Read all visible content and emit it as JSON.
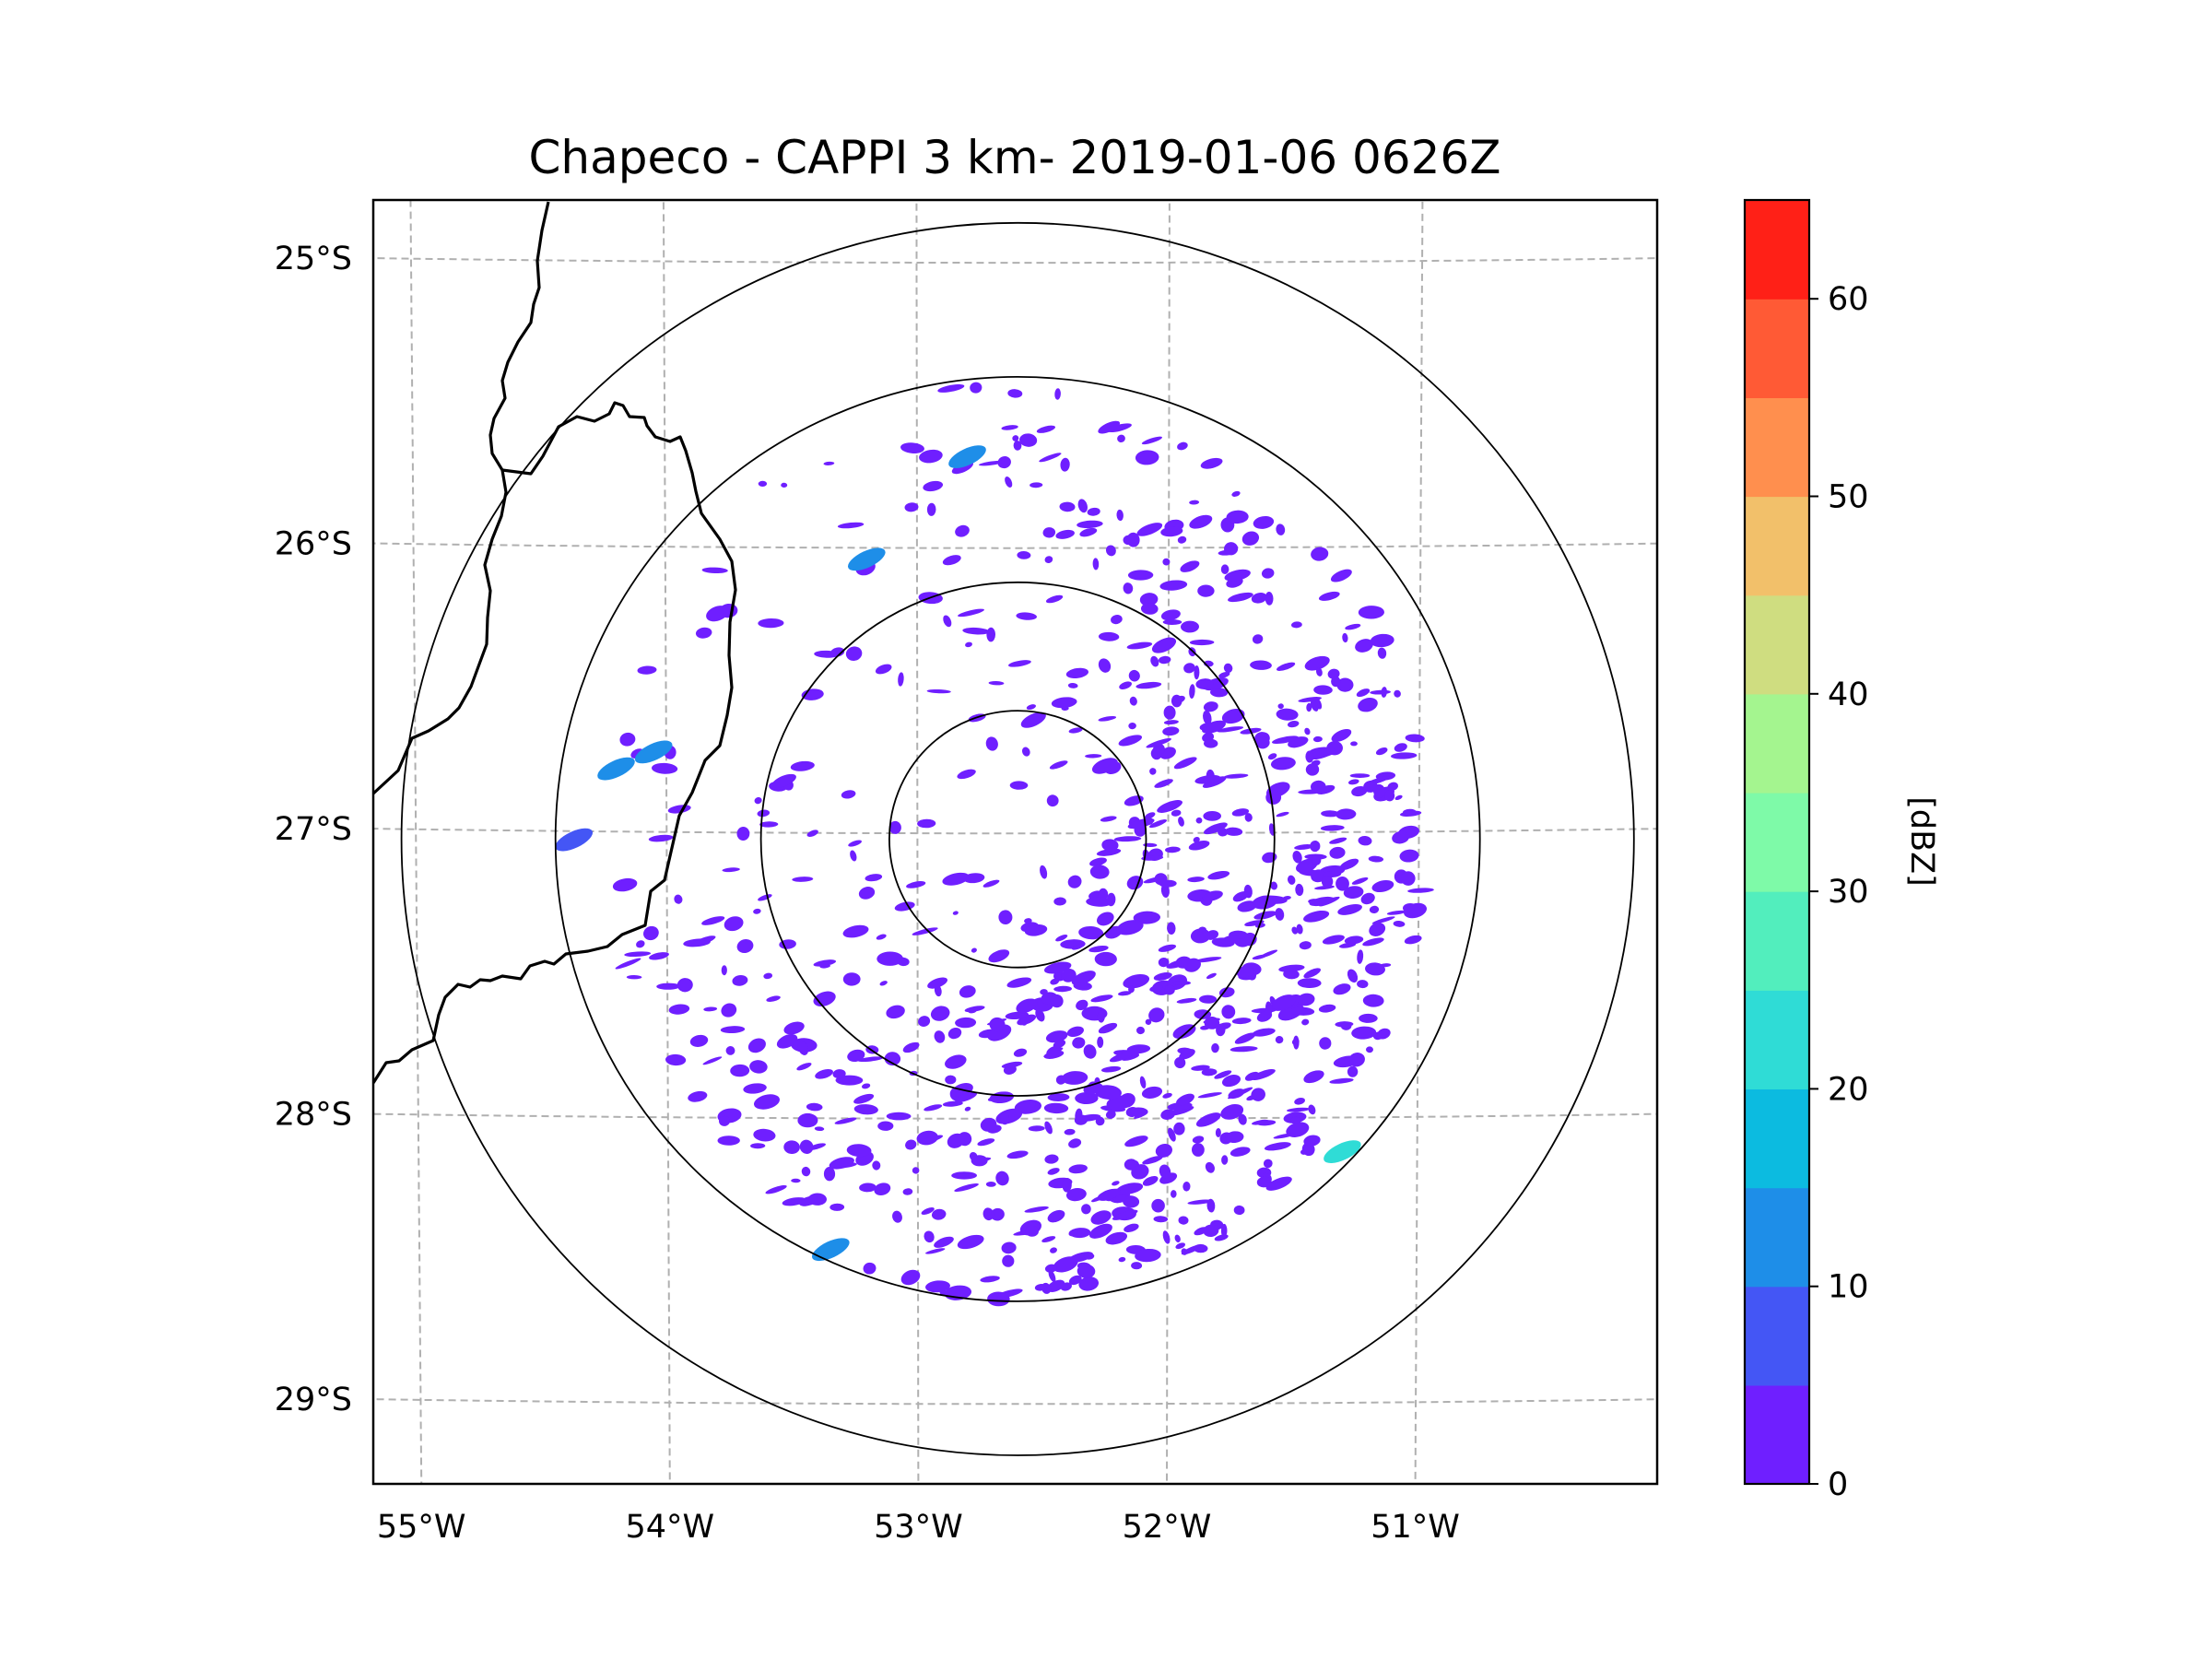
{
  "title": "Chapeco - CAPPI 3 km- 2019-01-06 0626Z",
  "radar_site": "Chapeco",
  "product": "CAPPI 3 km",
  "timestamp": "2019-01-06 0626Z",
  "map": {
    "lon_range": [
      -55.17,
      -50.05
    ],
    "lat_range": [
      -29.28,
      -24.78
    ],
    "radar_center": {
      "lon": -52.6,
      "lat": -27.02
    },
    "range_rings_deg": [
      0.45,
      0.9,
      1.62,
      2.16
    ],
    "longitude_labels": [
      "55°W",
      "54°W",
      "53°W",
      "52°W",
      "51°W"
    ],
    "latitude_labels": [
      "25°S",
      "26°S",
      "27°S",
      "28°S",
      "29°S"
    ],
    "gridline_longitudes": [
      -55,
      -54,
      -53,
      -52,
      -51
    ],
    "gridline_latitudes": [
      -25,
      -26,
      -27,
      -28,
      -29
    ]
  },
  "colorbar": {
    "label": "[dBZ]",
    "range": [
      0,
      65
    ],
    "tick_values": [
      0,
      10,
      20,
      30,
      40,
      50,
      60
    ],
    "tick_labels": [
      "0",
      "10",
      "20",
      "30",
      "40",
      "50",
      "60"
    ],
    "bins": [
      {
        "from": 0,
        "to": 5,
        "color": "#6f1fff"
      },
      {
        "from": 5,
        "to": 10,
        "color": "#4456f5"
      },
      {
        "from": 10,
        "to": 15,
        "color": "#1e8ee8"
      },
      {
        "from": 15,
        "to": 20,
        "color": "#0cbbe0"
      },
      {
        "from": 20,
        "to": 25,
        "color": "#2fdcd6"
      },
      {
        "from": 25,
        "to": 30,
        "color": "#52eebd"
      },
      {
        "from": 30,
        "to": 35,
        "color": "#7efaa8"
      },
      {
        "from": 35,
        "to": 40,
        "color": "#a4f58f"
      },
      {
        "from": 40,
        "to": 45,
        "color": "#cfdd80"
      },
      {
        "from": 45,
        "to": 50,
        "color": "#f2c06a"
      },
      {
        "from": 50,
        "to": 55,
        "color": "#ff8f4e"
      },
      {
        "from": 55,
        "to": 60,
        "color": "#ff5a35"
      },
      {
        "from": 60,
        "to": 65,
        "color": "#ff2017"
      }
    ]
  },
  "chart_data": {
    "type": "heatmap",
    "title": "Chapeco - CAPPI 3 km- 2019-01-06 0626Z",
    "xlabel": "",
    "ylabel": "",
    "colorbar_label": "[dBZ]",
    "value_range": [
      0,
      65
    ],
    "notable_echoes": [
      {
        "lon": -54.05,
        "lat": -26.72,
        "dbz": 12
      },
      {
        "lon": -54.2,
        "lat": -26.78,
        "dbz": 10
      },
      {
        "lon": -54.37,
        "lat": -27.03,
        "dbz": 8
      },
      {
        "lon": -52.8,
        "lat": -25.68,
        "dbz": 10
      },
      {
        "lon": -53.2,
        "lat": -26.04,
        "dbz": 10
      },
      {
        "lon": -51.3,
        "lat": -28.12,
        "dbz": 22
      },
      {
        "lon": -53.35,
        "lat": -28.46,
        "dbz": 12
      }
    ],
    "scattered_echo_dbz": [
      0,
      5
    ],
    "grid": true
  },
  "colors": {
    "background": "#ffffff",
    "frame": "#000000",
    "gridline": "#b0b0b0",
    "coastline": "#000000",
    "range_ring": "#000000"
  }
}
